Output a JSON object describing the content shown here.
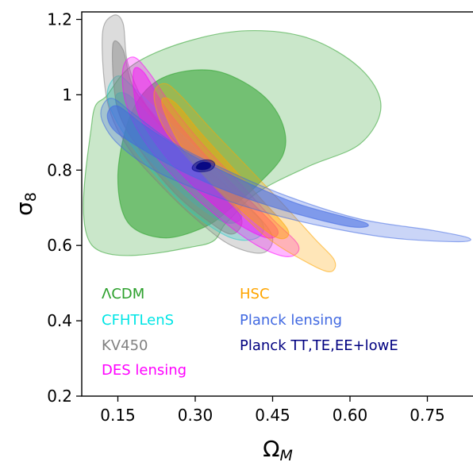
{
  "chart_data": {
    "type": "contour",
    "xlabel": "Ω",
    "xlabel_subscript": "M",
    "ylabel": "σ",
    "ylabel_subscript": "8",
    "xlim": [
      0.08,
      0.84
    ],
    "ylim": [
      0.2,
      1.22
    ],
    "xticks": [
      "0.15",
      "0.30",
      "0.45",
      "0.60",
      "0.75"
    ],
    "xtick_values": [
      0.15,
      0.3,
      0.45,
      0.6,
      0.75
    ],
    "yticks": [
      "0.2",
      "0.4",
      "0.6",
      "0.8",
      "1",
      "1.2"
    ],
    "ytick_values": [
      0.2,
      0.4,
      0.6,
      0.8,
      1.0,
      1.2
    ],
    "grid": false,
    "series": [
      {
        "name": "ΛCDM",
        "color": "#2ca02c",
        "contours": [
          {
            "level": "95%",
            "opacity": 0.25,
            "points": [
              [
                0.1,
                0.93
              ],
              [
                0.13,
                1.0
              ],
              [
                0.18,
                1.08
              ],
              [
                0.28,
                1.14
              ],
              [
                0.4,
                1.17
              ],
              [
                0.52,
                1.15
              ],
              [
                0.62,
                1.07
              ],
              [
                0.66,
                0.97
              ],
              [
                0.62,
                0.87
              ],
              [
                0.52,
                0.81
              ],
              [
                0.42,
                0.74
              ],
              [
                0.36,
                0.66
              ],
              [
                0.31,
                0.6
              ],
              [
                0.1,
                0.6
              ]
            ]
          },
          {
            "level": "68%",
            "opacity": 0.55,
            "points": [
              [
                0.15,
                0.78
              ],
              [
                0.17,
                0.93
              ],
              [
                0.21,
                1.02
              ],
              [
                0.27,
                1.06
              ],
              [
                0.35,
                1.06
              ],
              [
                0.43,
                1.0
              ],
              [
                0.47,
                0.92
              ],
              [
                0.47,
                0.84
              ],
              [
                0.42,
                0.76
              ],
              [
                0.37,
                0.7
              ],
              [
                0.32,
                0.65
              ],
              [
                0.24,
                0.62
              ],
              [
                0.17,
                0.66
              ]
            ]
          }
        ]
      },
      {
        "name": "CFHTLenS",
        "color": "#00e5e5",
        "contours": [
          {
            "level": "95%",
            "opacity": 0.28,
            "points": [
              [
                0.13,
                1.01
              ],
              [
                0.15,
                1.05
              ],
              [
                0.18,
                1.02
              ],
              [
                0.24,
                0.94
              ],
              [
                0.32,
                0.83
              ],
              [
                0.38,
                0.73
              ],
              [
                0.43,
                0.66
              ],
              [
                0.42,
                0.62
              ],
              [
                0.37,
                0.62
              ],
              [
                0.3,
                0.68
              ],
              [
                0.24,
                0.76
              ],
              [
                0.18,
                0.86
              ],
              [
                0.14,
                0.95
              ]
            ]
          },
          {
            "level": "68%",
            "opacity": 0.45,
            "points": [
              [
                0.145,
                0.99
              ],
              [
                0.17,
                1.0
              ],
              [
                0.22,
                0.93
              ],
              [
                0.29,
                0.83
              ],
              [
                0.35,
                0.75
              ],
              [
                0.39,
                0.68
              ],
              [
                0.36,
                0.66
              ],
              [
                0.3,
                0.71
              ],
              [
                0.23,
                0.8
              ],
              [
                0.17,
                0.9
              ]
            ]
          }
        ]
      },
      {
        "name": "KV450",
        "color": "#808080",
        "contours": [
          {
            "level": "95%",
            "opacity": 0.28,
            "points": [
              [
                0.12,
                1.16
              ],
              [
                0.14,
                1.21
              ],
              [
                0.16,
                1.19
              ],
              [
                0.17,
                1.08
              ],
              [
                0.21,
                0.96
              ],
              [
                0.28,
                0.85
              ],
              [
                0.35,
                0.77
              ],
              [
                0.42,
                0.68
              ],
              [
                0.45,
                0.62
              ],
              [
                0.43,
                0.58
              ],
              [
                0.37,
                0.6
              ],
              [
                0.31,
                0.66
              ],
              [
                0.24,
                0.75
              ],
              [
                0.17,
                0.86
              ],
              [
                0.13,
                0.98
              ]
            ]
          },
          {
            "level": "68%",
            "opacity": 0.45,
            "points": [
              [
                0.14,
                1.13
              ],
              [
                0.16,
                1.12
              ],
              [
                0.18,
                1.02
              ],
              [
                0.23,
                0.93
              ],
              [
                0.29,
                0.83
              ],
              [
                0.35,
                0.74
              ],
              [
                0.39,
                0.67
              ],
              [
                0.37,
                0.63
              ],
              [
                0.32,
                0.67
              ],
              [
                0.26,
                0.74
              ],
              [
                0.2,
                0.84
              ],
              [
                0.15,
                0.96
              ]
            ]
          }
        ]
      },
      {
        "name": "DES lensing",
        "color": "#ff00ff",
        "contours": [
          {
            "level": "95%",
            "opacity": 0.28,
            "points": [
              [
                0.16,
                1.07
              ],
              [
                0.18,
                1.1
              ],
              [
                0.21,
                1.06
              ],
              [
                0.26,
                0.96
              ],
              [
                0.32,
                0.86
              ],
              [
                0.39,
                0.76
              ],
              [
                0.45,
                0.67
              ],
              [
                0.5,
                0.6
              ],
              [
                0.48,
                0.57
              ],
              [
                0.42,
                0.6
              ],
              [
                0.34,
                0.68
              ],
              [
                0.26,
                0.78
              ],
              [
                0.2,
                0.88
              ],
              [
                0.165,
                0.98
              ]
            ]
          },
          {
            "level": "68%",
            "opacity": 0.45,
            "points": [
              [
                0.18,
                1.06
              ],
              [
                0.2,
                1.06
              ],
              [
                0.24,
                0.97
              ],
              [
                0.3,
                0.87
              ],
              [
                0.36,
                0.78
              ],
              [
                0.42,
                0.7
              ],
              [
                0.46,
                0.64
              ],
              [
                0.44,
                0.62
              ],
              [
                0.38,
                0.66
              ],
              [
                0.31,
                0.74
              ],
              [
                0.24,
                0.84
              ],
              [
                0.19,
                0.95
              ]
            ]
          }
        ]
      },
      {
        "name": "HSC",
        "color": "#ffa500",
        "contours": [
          {
            "level": "95%",
            "opacity": 0.28,
            "points": [
              [
                0.22,
                1.0
              ],
              [
                0.24,
                1.03
              ],
              [
                0.27,
                1.0
              ],
              [
                0.33,
                0.91
              ],
              [
                0.4,
                0.81
              ],
              [
                0.47,
                0.71
              ],
              [
                0.53,
                0.62
              ],
              [
                0.57,
                0.56
              ],
              [
                0.56,
                0.53
              ],
              [
                0.51,
                0.56
              ],
              [
                0.44,
                0.62
              ],
              [
                0.37,
                0.71
              ],
              [
                0.3,
                0.81
              ],
              [
                0.24,
                0.91
              ]
            ]
          },
          {
            "level": "68%",
            "opacity": 0.45,
            "points": [
              [
                0.235,
                0.98
              ],
              [
                0.26,
                0.98
              ],
              [
                0.31,
                0.9
              ],
              [
                0.37,
                0.81
              ],
              [
                0.43,
                0.72
              ],
              [
                0.48,
                0.64
              ],
              [
                0.46,
                0.62
              ],
              [
                0.4,
                0.68
              ],
              [
                0.33,
                0.77
              ],
              [
                0.27,
                0.87
              ]
            ]
          }
        ]
      },
      {
        "name": "Planck lensing",
        "color": "#4169e1",
        "contours": [
          {
            "level": "95%",
            "opacity": 0.28,
            "points": [
              [
                0.12,
                0.97
              ],
              [
                0.14,
                0.99
              ],
              [
                0.18,
                0.95
              ],
              [
                0.26,
                0.87
              ],
              [
                0.36,
                0.8
              ],
              [
                0.48,
                0.73
              ],
              [
                0.62,
                0.67
              ],
              [
                0.76,
                0.64
              ],
              [
                0.83,
                0.62
              ],
              [
                0.81,
                0.61
              ],
              [
                0.68,
                0.62
              ],
              [
                0.55,
                0.65
              ],
              [
                0.43,
                0.69
              ],
              [
                0.32,
                0.74
              ],
              [
                0.22,
                0.8
              ],
              [
                0.15,
                0.87
              ],
              [
                0.12,
                0.93
              ]
            ]
          },
          {
            "level": "68%",
            "opacity": 0.55,
            "points": [
              [
                0.13,
                0.95
              ],
              [
                0.15,
                0.97
              ],
              [
                0.2,
                0.92
              ],
              [
                0.28,
                0.85
              ],
              [
                0.38,
                0.78
              ],
              [
                0.5,
                0.71
              ],
              [
                0.63,
                0.66
              ],
              [
                0.6,
                0.65
              ],
              [
                0.48,
                0.69
              ],
              [
                0.37,
                0.74
              ],
              [
                0.27,
                0.8
              ],
              [
                0.18,
                0.87
              ],
              [
                0.14,
                0.91
              ]
            ]
          }
        ]
      },
      {
        "name": "Planck TT,TE,EE+lowE",
        "color": "#000080",
        "contours": [
          {
            "level": "95%",
            "opacity": 0.45,
            "points": [
              [
                0.294,
                0.805
              ],
              [
                0.3,
                0.818
              ],
              [
                0.314,
                0.826
              ],
              [
                0.33,
                0.826
              ],
              [
                0.338,
                0.816
              ],
              [
                0.332,
                0.802
              ],
              [
                0.318,
                0.796
              ],
              [
                0.302,
                0.797
              ]
            ]
          },
          {
            "level": "68%",
            "opacity": 0.85,
            "points": [
              [
                0.302,
                0.806
              ],
              [
                0.307,
                0.817
              ],
              [
                0.318,
                0.821
              ],
              [
                0.328,
                0.818
              ],
              [
                0.33,
                0.81
              ],
              [
                0.323,
                0.803
              ],
              [
                0.311,
                0.801
              ]
            ]
          }
        ]
      }
    ],
    "legend": {
      "placement": "lower-left",
      "columns": [
        [
          "ΛCDM",
          "CFHTLenS",
          "KV450",
          "DES lensing"
        ],
        [
          "HSC",
          "Planck lensing",
          "Planck TT,TE,EE+lowE"
        ]
      ]
    }
  }
}
